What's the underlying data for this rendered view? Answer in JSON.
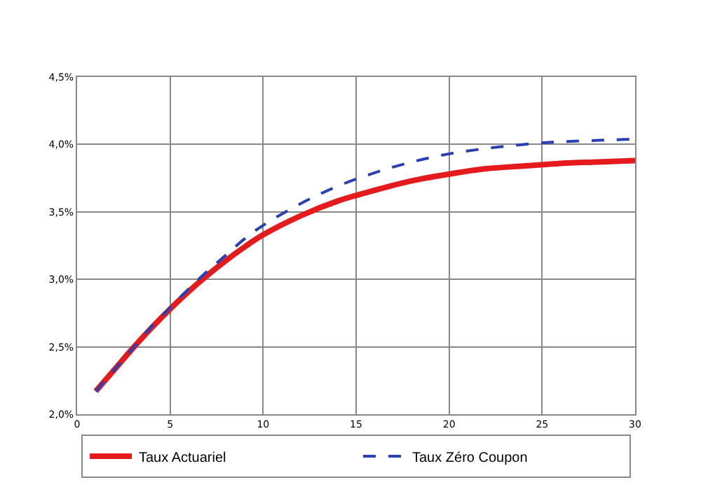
{
  "chart_data": {
    "type": "line",
    "x": [
      1,
      2,
      3,
      4,
      5,
      6,
      7,
      8,
      9,
      10,
      12,
      14,
      16,
      18,
      20,
      22,
      24,
      26,
      28,
      30
    ],
    "series": [
      {
        "name": "Taux Actuariel",
        "color": "#e41a1c",
        "line_style": "solid",
        "values": [
          2.17,
          2.33,
          2.49,
          2.64,
          2.78,
          2.91,
          3.03,
          3.14,
          3.24,
          3.33,
          3.47,
          3.58,
          3.66,
          3.73,
          3.78,
          3.82,
          3.84,
          3.86,
          3.87,
          3.88
        ]
      },
      {
        "name": "Taux Zéro Coupon",
        "color": "#2b3fb5",
        "line_style": "dashed",
        "values": [
          2.17,
          2.33,
          2.49,
          2.65,
          2.79,
          2.93,
          3.06,
          3.18,
          3.3,
          3.4,
          3.56,
          3.69,
          3.79,
          3.87,
          3.93,
          3.97,
          4.0,
          4.02,
          4.03,
          4.04
        ]
      }
    ],
    "xlim": [
      0,
      30
    ],
    "xticks": [
      0,
      5,
      10,
      15,
      20,
      25,
      30
    ],
    "ylim": [
      2.0,
      4.5
    ],
    "yticks": [
      {
        "value": 2.0,
        "label": "2,0%"
      },
      {
        "value": 2.5,
        "label": "2,5%"
      },
      {
        "value": 3.0,
        "label": "3,0%"
      },
      {
        "value": 3.5,
        "label": "3,5%"
      },
      {
        "value": 4.0,
        "label": "4,0%"
      },
      {
        "value": 4.5,
        "label": "4,5%"
      }
    ],
    "grid": true,
    "legend": "bottom",
    "marker": "none"
  }
}
